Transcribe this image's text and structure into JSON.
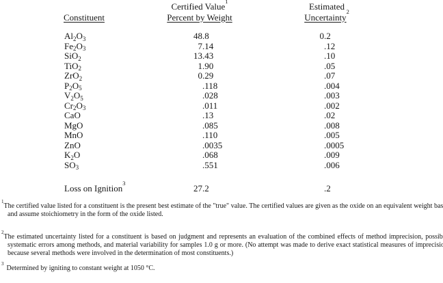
{
  "table": {
    "headers": {
      "constituent": "Constituent",
      "certified_line1": "Certified Value",
      "certified_sup": "1",
      "certified_line2": "Percent by Weight",
      "estimated_line1": "Estimated",
      "estimated_line2": "Uncertainty",
      "estimated_sup": "2"
    },
    "rows": [
      {
        "formula": "Al2O3",
        "certified": "48.8",
        "uncertainty": "0.2"
      },
      {
        "formula": "Fe2O3",
        "certified": "7.14",
        "uncertainty": ".12"
      },
      {
        "formula": "SiO2",
        "certified": "13.43",
        "uncertainty": ".10"
      },
      {
        "formula": "TiO2",
        "certified": "1.90",
        "uncertainty": ".05"
      },
      {
        "formula": "ZrO2",
        "certified": "0.29",
        "uncertainty": ".07"
      },
      {
        "formula": "P2O5",
        "certified": ".118",
        "uncertainty": ".004"
      },
      {
        "formula": "V2O5",
        "certified": ".028",
        "uncertainty": ".003"
      },
      {
        "formula": "Cr2O3",
        "certified": ".011",
        "uncertainty": ".002"
      },
      {
        "formula": "CaO",
        "certified": ".13",
        "uncertainty": ".02"
      },
      {
        "formula": "MgO",
        "certified": ".085",
        "uncertainty": ".008"
      },
      {
        "formula": "MnO",
        "certified": ".110",
        "uncertainty": ".005"
      },
      {
        "formula": "ZnO",
        "certified": ".0035",
        "uncertainty": ".0005"
      },
      {
        "formula": "K2O",
        "certified": ".068",
        "uncertainty": ".009"
      },
      {
        "formula": "SO3",
        "certified": ".551",
        "uncertainty": ".006"
      }
    ],
    "loss_row": {
      "label": "Loss on Ignition",
      "sup": "3",
      "certified": "27.2",
      "uncertainty": ".2"
    }
  },
  "footnotes": [
    {
      "sup": "1",
      "text": "The certified value listed for a constituent is the present best estimate of the \"true\" value.  The certified values are given as the oxide on an equivalent weight basis and assume stoichiometry in the form of the oxide listed."
    },
    {
      "sup": "2",
      "text": "The estimated uncertainty listed for a constituent is based on judgment and represents an evaluation of the combined effects of method imprecision, possible systematic errors among methods, and material variability for samples 1.0 g or more.  (No attempt was made to derive exact statistical measures of imprecision because several methods were involved in the determination of most constituents.)"
    },
    {
      "sup": "3",
      "text": "Determined by igniting to constant weight at 1050 °C."
    }
  ]
}
